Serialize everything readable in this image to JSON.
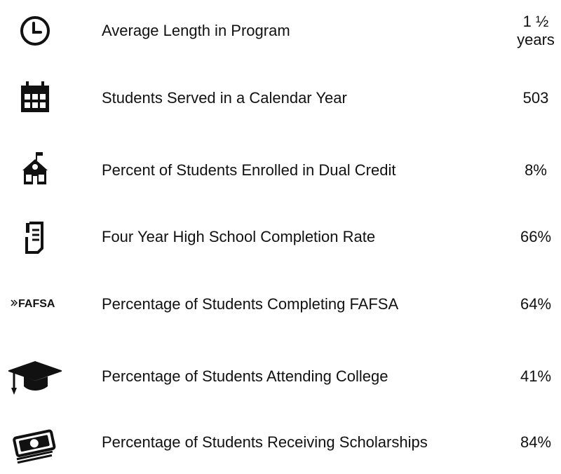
{
  "rows": [
    {
      "label": "Average Length in Program",
      "value": "1 ½ years"
    },
    {
      "label": "Students Served in a Calendar Year",
      "value": "503"
    },
    {
      "label": "Percent of Students Enrolled in Dual Credit",
      "value": "8%"
    },
    {
      "label": "Four Year High School Completion Rate",
      "value": "66%"
    },
    {
      "icon_text": "FAFSA",
      "label": "Percentage of Students Completing FAFSA",
      "value": "64%"
    },
    {
      "label": "Percentage of Students Attending College",
      "value": "41%"
    },
    {
      "label": "Percentage of Students Receiving Scholarships",
      "value": "84%"
    }
  ]
}
